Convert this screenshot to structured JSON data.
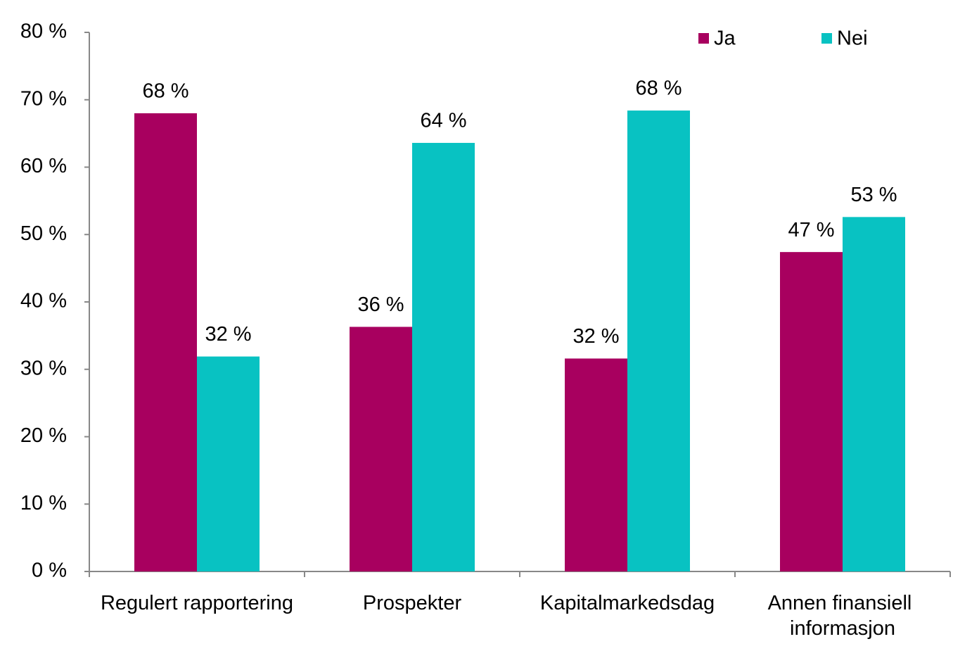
{
  "chart_data": {
    "type": "bar",
    "categories": [
      "Regulert rapportering",
      "Prospekter",
      "Kapitalmarkedsdag",
      "Annen finansiell informasjon"
    ],
    "series": [
      {
        "name": "Ja",
        "color": "#a8005f",
        "values": [
          68,
          36.3,
          31.6,
          47.4
        ],
        "value_labels": [
          "68 %",
          "36 %",
          "32 %",
          "47 %"
        ]
      },
      {
        "name": "Nei",
        "color": "#08c2c2",
        "values": [
          31.9,
          63.6,
          68.4,
          52.6
        ],
        "value_labels": [
          "32 %",
          "64 %",
          "68 %",
          "53 %"
        ]
      }
    ],
    "ylim": [
      0,
      80
    ],
    "yticks": [
      {
        "value": 0,
        "label": "0 %"
      },
      {
        "value": 10,
        "label": "10 %"
      },
      {
        "value": 20,
        "label": "20 %"
      },
      {
        "value": 30,
        "label": "30 %"
      },
      {
        "value": 40,
        "label": "40 %"
      },
      {
        "value": 50,
        "label": "50 %"
      },
      {
        "value": 60,
        "label": "60 %"
      },
      {
        "value": 70,
        "label": "70 %"
      },
      {
        "value": 80,
        "label": "80 %"
      }
    ],
    "grid": false,
    "legend": "top-right"
  }
}
